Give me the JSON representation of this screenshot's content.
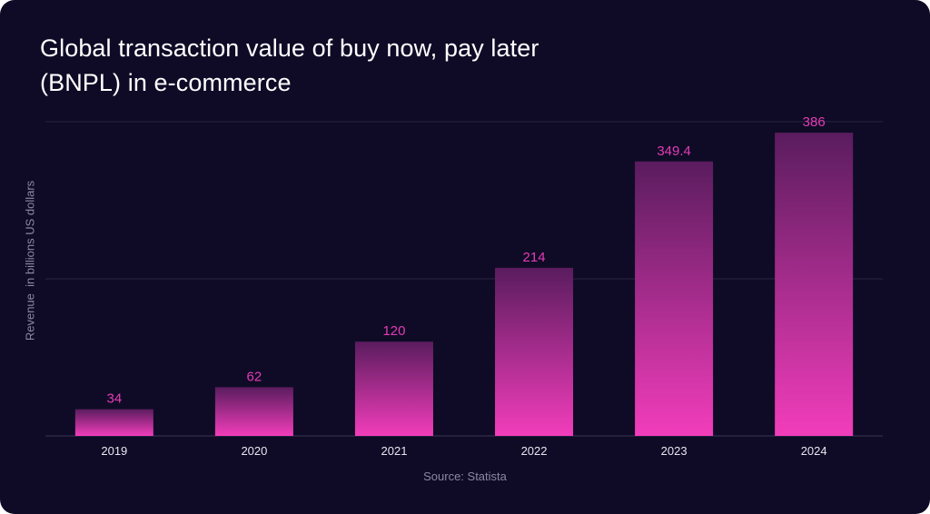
{
  "colors": {
    "background": "#0f0b26",
    "bar_bottom": "#f23dbb",
    "bar_top": "#5a1c5e",
    "value_label": "#e43bb5",
    "gridline": "#2a2442"
  },
  "chart_data": {
    "type": "bar",
    "title": "Global transaction value of buy now, pay later (BNPL) in e-commerce",
    "xlabel": "",
    "ylabel": "Revenue  in billions US dollars",
    "categories": [
      "2019",
      "2020",
      "2021",
      "2022",
      "2023",
      "2024"
    ],
    "values": [
      34,
      62,
      120,
      214,
      349.4,
      386
    ],
    "value_labels": [
      "34",
      "62",
      "120",
      "214",
      "349.4",
      "386"
    ],
    "ylim": [
      0,
      400
    ],
    "grid": true,
    "legend": "none",
    "source": "Source: Statista"
  }
}
